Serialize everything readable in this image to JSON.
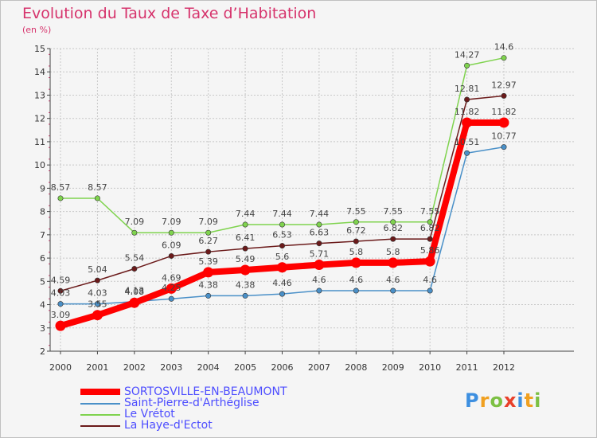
{
  "header": {
    "title": "Evolution du Taux de Taxe d’Habitation",
    "subtitle": "(en %)"
  },
  "colors": {
    "title": "#d6336c",
    "legend_text": "#4d4dff",
    "grid": "#c8c8c8"
  },
  "chart_data": {
    "type": "line",
    "title": "Evolution du Taux de Taxe d’Habitation",
    "ylabel": "(en %)",
    "xlabel": "",
    "categories": [
      "2000",
      "2001",
      "2002",
      "2003",
      "2004",
      "2005",
      "2006",
      "2007",
      "2008",
      "2009",
      "2010",
      "2011",
      "2012"
    ],
    "ylim": [
      2,
      15
    ],
    "yticks": [
      "2",
      "3",
      "4",
      "5",
      "6",
      "7",
      "8",
      "9",
      "10",
      "11",
      "12",
      "13",
      "14",
      "15"
    ],
    "grid": true,
    "series": [
      {
        "name": "SORTOSVILLE-EN-BEAUMONT",
        "color": "#ff0000",
        "values": [
          3.09,
          3.55,
          4.08,
          4.69,
          5.39,
          5.49,
          5.6,
          5.71,
          5.8,
          5.8,
          5.86,
          11.82,
          11.82
        ],
        "labels": [
          "3.09",
          "3.55",
          "4.08",
          "4.69",
          "5.39",
          "5.49",
          "5.6",
          "5.71",
          "5.8",
          "5.8",
          "5.86",
          "11.82",
          "11.82"
        ]
      },
      {
        "name": "Saint-Pierre-d'Arthéglise",
        "color": "#4a90c8",
        "values": [
          4.03,
          4.03,
          4.13,
          4.25,
          4.38,
          4.38,
          4.46,
          4.6,
          4.6,
          4.6,
          4.6,
          10.51,
          10.77
        ],
        "labels": [
          "4.03",
          "4.03",
          "4.13",
          "4.25",
          "4.38",
          "4.38",
          "4.46",
          "4.6",
          "4.6",
          "4.6",
          "4.6",
          "10.51",
          "10.77"
        ]
      },
      {
        "name": "Le Vrétot",
        "color": "#7fd34e",
        "values": [
          8.57,
          8.57,
          7.09,
          7.09,
          7.09,
          7.44,
          7.44,
          7.44,
          7.55,
          7.55,
          7.55,
          14.27,
          14.6
        ],
        "labels": [
          "8.57",
          "8.57",
          "7.09",
          "7.09",
          "7.09",
          "7.44",
          "7.44",
          "7.44",
          "7.55",
          "7.55",
          "7.55",
          "14.27",
          "14.6"
        ]
      },
      {
        "name": "La Haye-d'Ectot",
        "color": "#6b1a1a",
        "values": [
          4.59,
          5.04,
          5.54,
          6.09,
          6.27,
          6.41,
          6.53,
          6.63,
          6.72,
          6.82,
          6.82,
          12.81,
          12.97
        ],
        "labels": [
          "4.59",
          "5.04",
          "5.54",
          "6.09",
          "6.27",
          "6.41",
          "6.53",
          "6.63",
          "6.72",
          "6.82",
          "6.82",
          "12.81",
          "12.97"
        ]
      }
    ],
    "legend_position": "bottom-left"
  },
  "legend": {
    "items": [
      {
        "label": "SORTOSVILLE-EN-BEAUMONT",
        "color": "#ff0000"
      },
      {
        "label": "Saint-Pierre-d'Arthéglise",
        "color": "#4a90c8"
      },
      {
        "label": "Le Vrétot",
        "color": "#7fd34e"
      },
      {
        "label": "La Haye-d'Ectot",
        "color": "#6b1a1a"
      }
    ]
  },
  "logo": {
    "letters": [
      "P",
      "r",
      "o",
      "x",
      "i",
      "t",
      "i"
    ],
    "colors": [
      "#3d8fe0",
      "#f0a020",
      "#7cc043",
      "#e8402a",
      "#3d8fe0",
      "#f0a020",
      "#7cc043"
    ]
  }
}
